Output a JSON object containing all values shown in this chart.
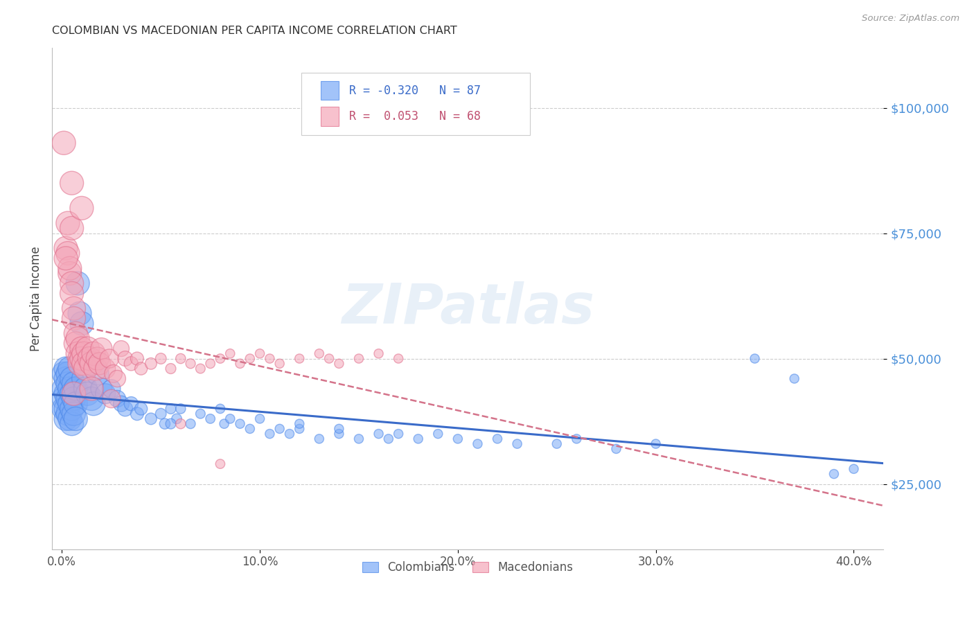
{
  "title": "COLOMBIAN VS MACEDONIAN PER CAPITA INCOME CORRELATION CHART",
  "source": "Source: ZipAtlas.com",
  "ylabel": "Per Capita Income",
  "xlabel_ticks": [
    "0.0%",
    "10.0%",
    "20.0%",
    "30.0%",
    "40.0%"
  ],
  "xlabel_tick_vals": [
    0.0,
    0.1,
    0.2,
    0.3,
    0.4
  ],
  "ytick_vals": [
    25000,
    50000,
    75000,
    100000
  ],
  "ytick_labels": [
    "$25,000",
    "$50,000",
    "$75,000",
    "$100,000"
  ],
  "ymin": 12000,
  "ymax": 112000,
  "xmin": -0.005,
  "xmax": 0.415,
  "colombian_color": "#7baaf7",
  "colombian_edge": "#4a86e8",
  "macedonian_color": "#f4a7b9",
  "macedonian_edge": "#e06c8a",
  "colombian_R": -0.32,
  "colombian_N": 87,
  "macedonian_R": 0.053,
  "macedonian_N": 68,
  "watermark": "ZIPatlas",
  "col_line_color": "#3a6bc9",
  "mac_line_color": "#d4738a",
  "colombian_points": [
    [
      0.001,
      47000
    ],
    [
      0.001,
      44000
    ],
    [
      0.001,
      42000
    ],
    [
      0.001,
      40000
    ],
    [
      0.002,
      48000
    ],
    [
      0.002,
      46000
    ],
    [
      0.002,
      43000
    ],
    [
      0.002,
      40000
    ],
    [
      0.002,
      38000
    ],
    [
      0.003,
      47000
    ],
    [
      0.003,
      45000
    ],
    [
      0.003,
      42000
    ],
    [
      0.003,
      39000
    ],
    [
      0.004,
      48000
    ],
    [
      0.004,
      44000
    ],
    [
      0.004,
      41000
    ],
    [
      0.004,
      38000
    ],
    [
      0.005,
      46000
    ],
    [
      0.005,
      43000
    ],
    [
      0.005,
      40000
    ],
    [
      0.005,
      37000
    ],
    [
      0.006,
      45000
    ],
    [
      0.006,
      42000
    ],
    [
      0.006,
      39000
    ],
    [
      0.007,
      44000
    ],
    [
      0.007,
      41000
    ],
    [
      0.007,
      38000
    ],
    [
      0.008,
      65000
    ],
    [
      0.009,
      59000
    ],
    [
      0.01,
      57000
    ],
    [
      0.011,
      46000
    ],
    [
      0.012,
      44000
    ],
    [
      0.013,
      43000
    ],
    [
      0.015,
      42000
    ],
    [
      0.016,
      41000
    ],
    [
      0.018,
      47000
    ],
    [
      0.02,
      44000
    ],
    [
      0.022,
      43000
    ],
    [
      0.025,
      44000
    ],
    [
      0.028,
      42000
    ],
    [
      0.03,
      41000
    ],
    [
      0.032,
      40000
    ],
    [
      0.035,
      41000
    ],
    [
      0.038,
      39000
    ],
    [
      0.04,
      40000
    ],
    [
      0.045,
      38000
    ],
    [
      0.05,
      39000
    ],
    [
      0.052,
      37000
    ],
    [
      0.055,
      40000
    ],
    [
      0.058,
      38000
    ],
    [
      0.06,
      40000
    ],
    [
      0.065,
      37000
    ],
    [
      0.07,
      39000
    ],
    [
      0.075,
      38000
    ],
    [
      0.08,
      40000
    ],
    [
      0.082,
      37000
    ],
    [
      0.085,
      38000
    ],
    [
      0.09,
      37000
    ],
    [
      0.095,
      36000
    ],
    [
      0.1,
      38000
    ],
    [
      0.105,
      35000
    ],
    [
      0.11,
      36000
    ],
    [
      0.115,
      35000
    ],
    [
      0.12,
      36000
    ],
    [
      0.13,
      34000
    ],
    [
      0.14,
      35000
    ],
    [
      0.15,
      34000
    ],
    [
      0.16,
      35000
    ],
    [
      0.165,
      34000
    ],
    [
      0.17,
      35000
    ],
    [
      0.18,
      34000
    ],
    [
      0.19,
      35000
    ],
    [
      0.2,
      34000
    ],
    [
      0.21,
      33000
    ],
    [
      0.22,
      34000
    ],
    [
      0.23,
      33000
    ],
    [
      0.25,
      33000
    ],
    [
      0.26,
      34000
    ],
    [
      0.28,
      32000
    ],
    [
      0.3,
      33000
    ],
    [
      0.35,
      50000
    ],
    [
      0.37,
      46000
    ],
    [
      0.39,
      27000
    ],
    [
      0.4,
      28000
    ],
    [
      0.12,
      37000
    ],
    [
      0.055,
      37000
    ],
    [
      0.14,
      36000
    ]
  ],
  "macedonian_points": [
    [
      0.001,
      93000
    ],
    [
      0.002,
      72000
    ],
    [
      0.003,
      77000
    ],
    [
      0.003,
      71000
    ],
    [
      0.004,
      67000
    ],
    [
      0.004,
      68000
    ],
    [
      0.005,
      85000
    ],
    [
      0.005,
      76000
    ],
    [
      0.005,
      65000
    ],
    [
      0.005,
      63000
    ],
    [
      0.006,
      60000
    ],
    [
      0.006,
      58000
    ],
    [
      0.006,
      43000
    ],
    [
      0.007,
      55000
    ],
    [
      0.007,
      53000
    ],
    [
      0.008,
      54000
    ],
    [
      0.008,
      51000
    ],
    [
      0.009,
      50000
    ],
    [
      0.009,
      49000
    ],
    [
      0.01,
      52000
    ],
    [
      0.01,
      50000
    ],
    [
      0.01,
      80000
    ],
    [
      0.011,
      51000
    ],
    [
      0.011,
      49000
    ],
    [
      0.012,
      48000
    ],
    [
      0.013,
      52000
    ],
    [
      0.014,
      50000
    ],
    [
      0.015,
      49000
    ],
    [
      0.016,
      51000
    ],
    [
      0.017,
      48000
    ],
    [
      0.018,
      50000
    ],
    [
      0.019,
      49000
    ],
    [
      0.02,
      52000
    ],
    [
      0.022,
      48000
    ],
    [
      0.024,
      50000
    ],
    [
      0.026,
      47000
    ],
    [
      0.028,
      46000
    ],
    [
      0.03,
      52000
    ],
    [
      0.032,
      50000
    ],
    [
      0.035,
      49000
    ],
    [
      0.038,
      50000
    ],
    [
      0.04,
      48000
    ],
    [
      0.045,
      49000
    ],
    [
      0.05,
      50000
    ],
    [
      0.055,
      48000
    ],
    [
      0.06,
      50000
    ],
    [
      0.065,
      49000
    ],
    [
      0.07,
      48000
    ],
    [
      0.075,
      49000
    ],
    [
      0.08,
      50000
    ],
    [
      0.08,
      29000
    ],
    [
      0.085,
      51000
    ],
    [
      0.09,
      49000
    ],
    [
      0.095,
      50000
    ],
    [
      0.1,
      51000
    ],
    [
      0.105,
      50000
    ],
    [
      0.11,
      49000
    ],
    [
      0.12,
      50000
    ],
    [
      0.13,
      51000
    ],
    [
      0.135,
      50000
    ],
    [
      0.14,
      49000
    ],
    [
      0.15,
      50000
    ],
    [
      0.16,
      51000
    ],
    [
      0.17,
      50000
    ],
    [
      0.002,
      70000
    ],
    [
      0.015,
      44000
    ],
    [
      0.025,
      42000
    ],
    [
      0.06,
      37000
    ]
  ],
  "col_sizes_by_x": true,
  "mac_sizes_by_x": true
}
